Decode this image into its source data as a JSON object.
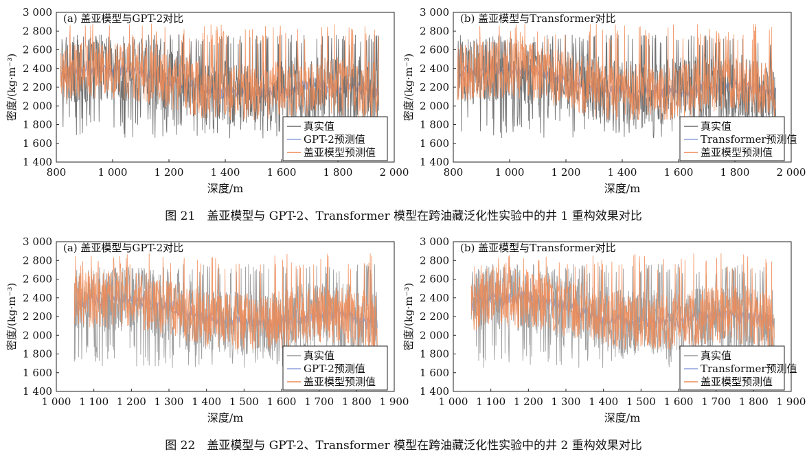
{
  "figures": [
    {
      "caption": "图 21　盖亚模型与 GPT-2、Transformer 模型在跨油藏泛化性实验中的井 1 重构效果对比"
    },
    {
      "caption": "图 22　盖亚模型与 GPT-2、Transformer 模型在跨油藏泛化性实验中的井 2 重构效果对比"
    }
  ],
  "colors": {
    "true": "#6b6b6b",
    "true_light": "#9a9a9a",
    "baseline": "#8ea0dd",
    "gaia": "#f08a55"
  },
  "chart_data": [
    {
      "type": "line",
      "title": "(a) 盖亚模型与GPT-2对比",
      "xlabel": "深度/m",
      "ylabel": "密度/(kg·m⁻³)",
      "xlim": [
        800,
        2000
      ],
      "ylim": [
        1400,
        3000
      ],
      "xticks": [
        800,
        1000,
        1200,
        1400,
        1600,
        1800,
        2000
      ],
      "xtick_labels": [
        "800",
        "1 000",
        "1 200",
        "1 400",
        "1 600",
        "1 800",
        "2 000"
      ],
      "yticks": [
        1400,
        1600,
        1800,
        2000,
        2200,
        2400,
        2600,
        2800,
        3000
      ],
      "ytick_labels": [
        "1 400",
        "1 600",
        "1 800",
        "2 000",
        "2 200",
        "2 400",
        "2 600",
        "2 800",
        "3 000"
      ],
      "legend_position": "bottom-right",
      "x_range": [
        815,
        1945
      ],
      "series": [
        {
          "name": "真实值",
          "color_key": "true",
          "width": 0.9
        },
        {
          "name": "GPT-2预测值",
          "color_key": "baseline",
          "width": 0.9
        },
        {
          "name": "盖亚模型预测值",
          "color_key": "gaia",
          "width": 0.9
        }
      ]
    },
    {
      "type": "line",
      "title": "(b) 盖亚模型与Transformer对比",
      "xlabel": "深度/m",
      "ylabel": "密度/(kg·m⁻³)",
      "xlim": [
        800,
        2000
      ],
      "ylim": [
        1400,
        3000
      ],
      "xticks": [
        800,
        1000,
        1200,
        1400,
        1600,
        1800,
        2000
      ],
      "xtick_labels": [
        "800",
        "1 000",
        "1 200",
        "1 400",
        "1 600",
        "1 800",
        "2 000"
      ],
      "yticks": [
        1400,
        1600,
        1800,
        2000,
        2200,
        2400,
        2600,
        2800,
        3000
      ],
      "ytick_labels": [
        "1 400",
        "1 600",
        "1 800",
        "2 000",
        "2 200",
        "2 400",
        "2 600",
        "2 800",
        "3 000"
      ],
      "legend_position": "bottom-right",
      "x_range": [
        815,
        1945
      ],
      "series": [
        {
          "name": "真实值",
          "color_key": "true",
          "width": 0.9
        },
        {
          "name": "Transformer预测值",
          "color_key": "baseline",
          "width": 0.9
        },
        {
          "name": "盖亚模型预测值",
          "color_key": "gaia",
          "width": 0.9
        }
      ]
    },
    {
      "type": "line",
      "title": "(a) 盖亚模型与GPT-2对比",
      "xlabel": "深度/m",
      "ylabel": "密度/(kg·m⁻³)",
      "xlim": [
        1000,
        1900
      ],
      "ylim": [
        1400,
        3000
      ],
      "xticks": [
        1000,
        1100,
        1200,
        1300,
        1400,
        1500,
        1600,
        1700,
        1800,
        1900
      ],
      "xtick_labels": [
        "1 000",
        "1 100",
        "1 200",
        "1 300",
        "1 400",
        "1 500",
        "1 600",
        "1 700",
        "1 800",
        "1 900"
      ],
      "yticks": [
        1400,
        1600,
        1800,
        2000,
        2200,
        2400,
        2600,
        2800,
        3000
      ],
      "ytick_labels": [
        "1 400",
        "1 600",
        "1 800",
        "2 000",
        "2 200",
        "2 400",
        "2 600",
        "2 800",
        "3 000"
      ],
      "legend_position": "bottom-right",
      "x_range": [
        1048,
        1855
      ],
      "series": [
        {
          "name": "真实值",
          "color_key": "true_light",
          "width": 0.9
        },
        {
          "name": "GPT-2预测值",
          "color_key": "baseline",
          "width": 0.9
        },
        {
          "name": "盖亚模型预测值",
          "color_key": "gaia",
          "width": 0.9
        }
      ]
    },
    {
      "type": "line",
      "title": "(b) 盖亚模型与Transformer对比",
      "xlabel": "深度/m",
      "ylabel": "密度/(kg·m⁻³)",
      "xlim": [
        1000,
        1900
      ],
      "ylim": [
        1400,
        3000
      ],
      "xticks": [
        1000,
        1100,
        1200,
        1300,
        1400,
        1500,
        1600,
        1700,
        1800,
        1900
      ],
      "xtick_labels": [
        "1 000",
        "1 100",
        "1 200",
        "1 300",
        "1 400",
        "1 500",
        "1 600",
        "1 700",
        "1 800",
        "1 900"
      ],
      "yticks": [
        1400,
        1600,
        1800,
        2000,
        2200,
        2400,
        2600,
        2800,
        3000
      ],
      "ytick_labels": [
        "1 400",
        "1 600",
        "1 800",
        "2 000",
        "2 200",
        "2 400",
        "2 600",
        "2 800",
        "3 000"
      ],
      "legend_position": "bottom-right",
      "x_range": [
        1048,
        1855
      ],
      "series": [
        {
          "name": "真实值",
          "color_key": "true_light",
          "width": 0.9
        },
        {
          "name": "Transformer预测值",
          "color_key": "baseline",
          "width": 0.9
        },
        {
          "name": "盖亚模型预测值",
          "color_key": "gaia",
          "width": 0.9
        }
      ]
    }
  ]
}
